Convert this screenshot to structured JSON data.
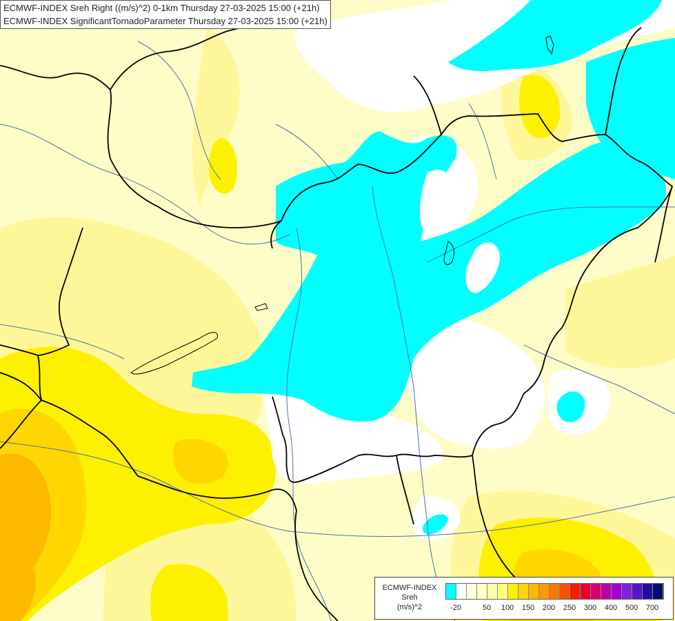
{
  "title": {
    "line1": "ECMWF-INDEX Sreh Right ((m/s)^2) 0-1km Thursday 27-03-2025 15:00 (+21h)",
    "line2": "ECMWF-INDEX SignificantTornadoParameter Thursday 27-03-2025 15:00 (+21h)"
  },
  "legend": {
    "line1": "ECMWF-INDEX",
    "line2": "Sreh",
    "line3": "(m/s)^2",
    "ticks": [
      "-20",
      "50",
      "100",
      "150",
      "200",
      "250",
      "300",
      "400",
      "500",
      "700"
    ],
    "colors": [
      "#00ffff",
      "#ffffff",
      "#fefed8",
      "#fefdc4",
      "#fefca8",
      "#feff80",
      "#fdf000",
      "#fed600",
      "#fdb800",
      "#fc9800",
      "#f97800",
      "#f65000",
      "#f02000",
      "#e80030",
      "#d80070",
      "#c000a0",
      "#a000d0",
      "#8020e0",
      "#5018c8",
      "#2010a0",
      "#0a0a70"
    ],
    "tick_swatch_index": [
      1,
      4,
      6,
      8,
      10,
      12,
      14,
      16,
      18,
      20
    ]
  },
  "map": {
    "colors": {
      "land_base": "#fefdc8",
      "pale": "#fefed8",
      "light_yellow": "#fdf79a",
      "yellow": "#fdf000",
      "gold": "#fed600",
      "orange": "#fdb800",
      "white": "#ffffff",
      "cyan": "#00ffff",
      "border": "#000000",
      "river": "#4a6fa8"
    }
  }
}
